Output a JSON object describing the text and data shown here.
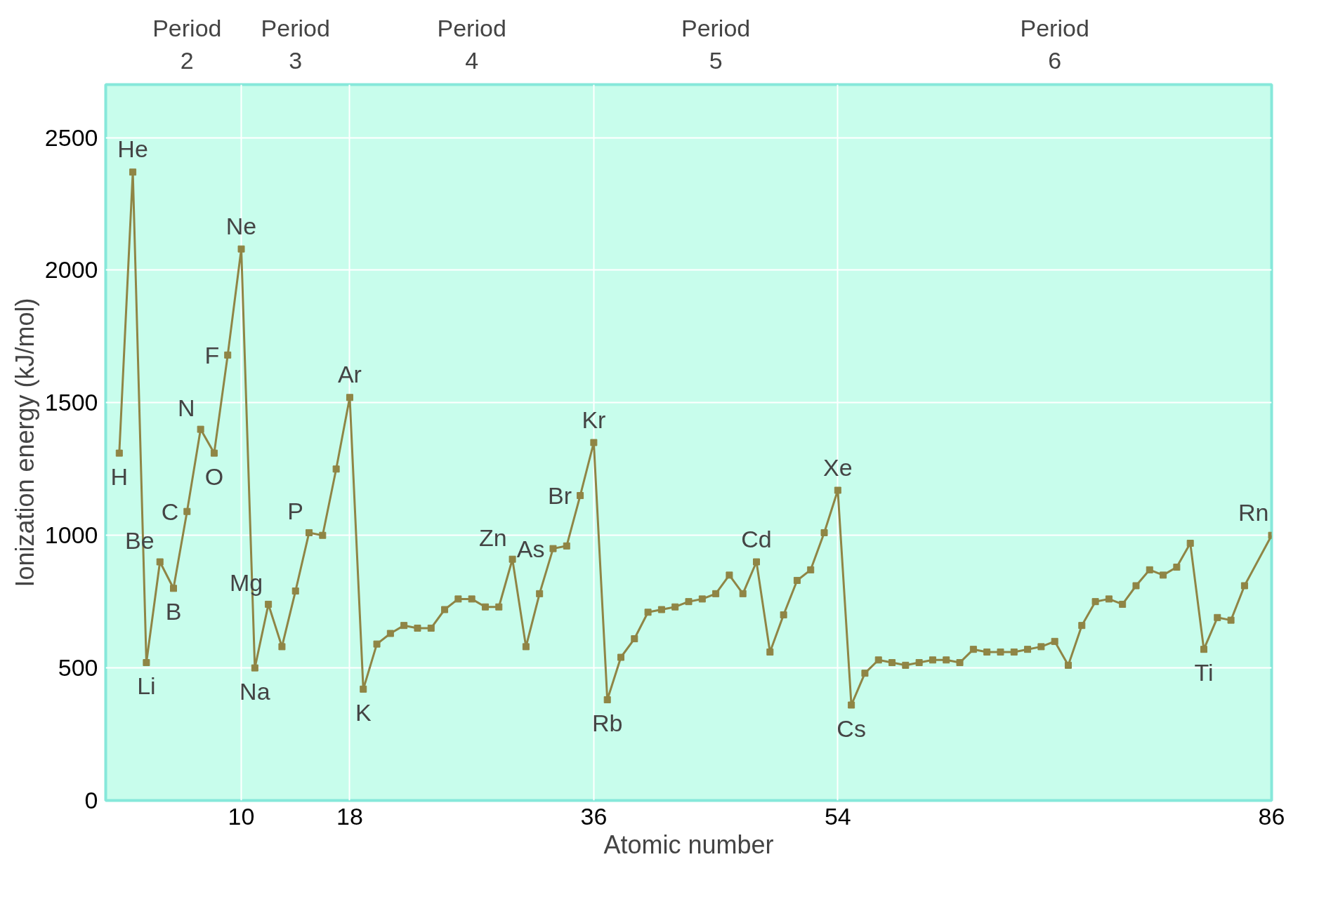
{
  "chart_data": {
    "type": "line",
    "xlabel": "Atomic number",
    "ylabel": "Ionization energy (kJ/mol)",
    "x": [
      1,
      2,
      3,
      4,
      5,
      6,
      7,
      8,
      9,
      10,
      11,
      12,
      13,
      14,
      15,
      16,
      17,
      18,
      19,
      20,
      21,
      22,
      23,
      24,
      25,
      26,
      27,
      28,
      29,
      30,
      31,
      32,
      33,
      34,
      35,
      36,
      37,
      38,
      39,
      40,
      41,
      42,
      43,
      44,
      45,
      46,
      47,
      48,
      49,
      50,
      51,
      52,
      53,
      54,
      55,
      56,
      57,
      58,
      59,
      60,
      61,
      62,
      63,
      64,
      65,
      66,
      67,
      68,
      69,
      70,
      71,
      72,
      73,
      74,
      75,
      76,
      77,
      78,
      79,
      80,
      81,
      82,
      83,
      84,
      86
    ],
    "series": [
      {
        "color": "#8f8545",
        "values": [
          1310,
          2370,
          520,
          900,
          800,
          1090,
          1400,
          1310,
          1680,
          2080,
          500,
          740,
          580,
          790,
          1010,
          1000,
          1250,
          1520,
          420,
          590,
          630,
          660,
          650,
          650,
          720,
          760,
          760,
          730,
          730,
          910,
          580,
          780,
          950,
          960,
          1150,
          1350,
          380,
          540,
          610,
          710,
          720,
          730,
          750,
          760,
          780,
          850,
          780,
          900,
          560,
          700,
          830,
          870,
          1010,
          1170,
          360,
          480,
          530,
          520,
          510,
          520,
          530,
          530,
          520,
          570,
          560,
          560,
          560,
          570,
          580,
          600,
          510,
          660,
          750,
          760,
          740,
          810,
          870,
          850,
          880,
          970,
          570,
          690,
          680,
          810,
          1000
        ]
      }
    ],
    "marker": "square",
    "grid": true,
    "xlim": [
      0,
      86
    ],
    "xticks": [
      10,
      18,
      36,
      54,
      86
    ],
    "ylim": [
      0,
      2700
    ],
    "yticks": [
      0,
      500,
      1000,
      1500,
      2000,
      2500
    ],
    "annotations": [
      "Period\n2",
      "Period\n3",
      "Period\n4",
      "Period\n5",
      "Period\n6",
      {
        "text": "H",
        "x": 1,
        "y": 1310
      },
      {
        "text": "He",
        "x": 2,
        "y": 2370
      },
      {
        "text": "Li",
        "x": 3,
        "y": 520
      },
      {
        "text": "Be",
        "x": 4,
        "y": 900
      },
      {
        "text": "B",
        "x": 5,
        "y": 800
      },
      {
        "text": "C",
        "x": 6,
        "y": 1090
      },
      {
        "text": "N",
        "x": 7,
        "y": 1400
      },
      {
        "text": "O",
        "x": 8,
        "y": 1310
      },
      {
        "text": "F",
        "x": 9,
        "y": 1680
      },
      {
        "text": "Ne",
        "x": 10,
        "y": 2080
      },
      {
        "text": "Na",
        "x": 11,
        "y": 500
      },
      {
        "text": "Mg",
        "x": 12,
        "y": 740
      },
      {
        "text": "P",
        "x": 15,
        "y": 1010
      },
      {
        "text": "Ar",
        "x": 18,
        "y": 1520
      },
      {
        "text": "K",
        "x": 19,
        "y": 420
      },
      {
        "text": "Zn",
        "x": 30,
        "y": 910
      },
      {
        "text": "As",
        "x": 33,
        "y": 950
      },
      {
        "text": "Br",
        "x": 35,
        "y": 1150
      },
      {
        "text": "Kr",
        "x": 36,
        "y": 1350
      },
      {
        "text": "Rb",
        "x": 37,
        "y": 380
      },
      {
        "text": "Cd",
        "x": 48,
        "y": 900
      },
      {
        "text": "Xe",
        "x": 54,
        "y": 1170
      },
      {
        "text": "Cs",
        "x": 55,
        "y": 360
      },
      {
        "text": "Ti",
        "x": 81,
        "y": 570
      },
      {
        "text": "Rn",
        "x": 86,
        "y": 1000
      }
    ]
  }
}
